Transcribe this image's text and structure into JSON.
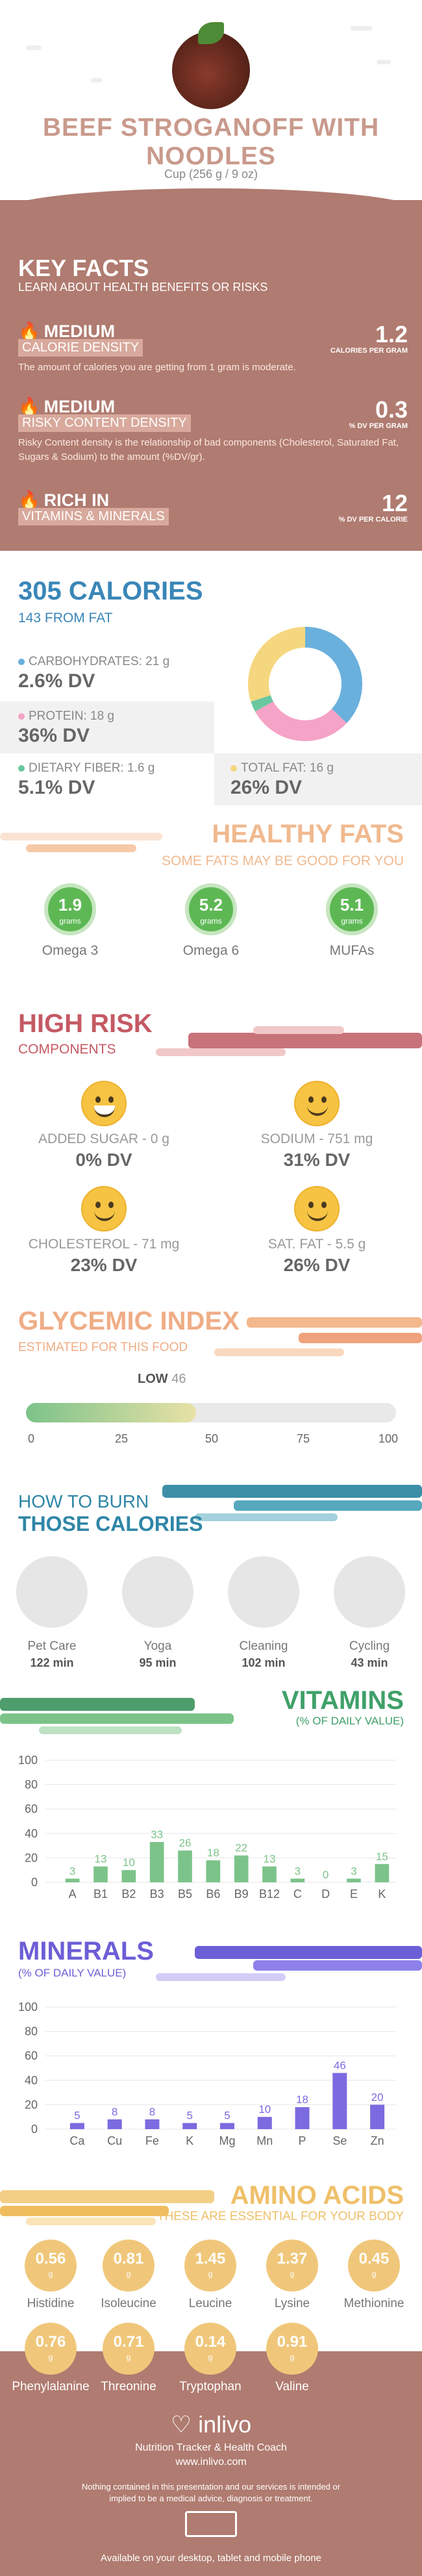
{
  "header": {
    "title": "BEEF STROGANOFF WITH NOODLES",
    "serving": "Cup (256 g / 9 oz)"
  },
  "key_facts": {
    "title": "KEY FACTS",
    "subtitle": "LEARN ABOUT HEALTH BENEFITS OR RISKS",
    "items": [
      {
        "level": "MEDIUM",
        "label": "CALORIE DENSITY",
        "value": "1.2",
        "unit": "CALORIES PER GRAM",
        "desc": "The amount of calories you are getting from 1 gram is moderate."
      },
      {
        "level": "MEDIUM",
        "label": "RISKY CONTENT DENSITY",
        "value": "0.3",
        "unit": "% DV PER GRAM",
        "desc": "Risky Content density is the relationship of bad components (Cholesterol, Saturated Fat, Sugars & Sodium) to the amount (%DV/gr)."
      },
      {
        "level": "RICH  IN",
        "label": "VITAMINS & MINERALS",
        "value": "12",
        "unit": "% DV PER CALORIE",
        "desc": ""
      }
    ]
  },
  "calories": {
    "title": "305 CALORIES",
    "fat": "143 FROM FAT",
    "nutrients": [
      {
        "label": "CARBOHYDRATES: 21 g",
        "dv": "2.6% DV",
        "color": "#6ab0dd"
      },
      {
        "label": "PROTEIN: 18 g",
        "dv": "36% DV",
        "color": "#f5a3c7"
      },
      {
        "label": "DIETARY FIBER: 1.6 g",
        "dv": "5.1% DV",
        "color": "#6bc7a0"
      },
      {
        "label": "TOTAL FAT: 16 g",
        "dv": "26% DV",
        "color": "#f5d77f"
      }
    ],
    "donut": [
      {
        "name": "carbs",
        "value": 37,
        "color": "#6ab0dd"
      },
      {
        "name": "protein",
        "value": 30,
        "color": "#f5a3c7"
      },
      {
        "name": "fiber",
        "value": 3,
        "color": "#6bc7a0"
      },
      {
        "name": "fat",
        "value": 30,
        "color": "#f5d77f"
      }
    ]
  },
  "healthy_fats": {
    "title": "HEALTHY FATS",
    "subtitle": "SOME FATS MAY BE GOOD FOR YOU",
    "items": [
      {
        "value": "1.9",
        "unit": "grams",
        "label": "Omega 3"
      },
      {
        "value": "5.2",
        "unit": "grams",
        "label": "Omega 6"
      },
      {
        "value": "5.1",
        "unit": "grams",
        "label": "MUFAs"
      }
    ]
  },
  "high_risk": {
    "title": "HIGH RISK",
    "subtitle": "COMPONENTS",
    "items": [
      {
        "label": "ADDED SUGAR - 0 g",
        "dv": "0% DV",
        "icon": "grin-icon"
      },
      {
        "label": "SODIUM - 751 mg",
        "dv": "31% DV",
        "icon": "smile-icon"
      },
      {
        "label": "CHOLESTEROL - 71 mg",
        "dv": "23% DV",
        "icon": "smile-icon"
      },
      {
        "label": "SAT. FAT - 5.5 g",
        "dv": "26% DV",
        "icon": "smile-icon"
      }
    ]
  },
  "glycemic": {
    "title": "GLYCEMIC INDEX",
    "subtitle": "ESTIMATED FOR THIS FOOD",
    "level": "LOW",
    "value": "46",
    "fraction": 0.46,
    "ticks": [
      "0",
      "25",
      "50",
      "75",
      "100"
    ]
  },
  "burn": {
    "title1": "HOW TO BURN",
    "title2": "THOSE CALORIES",
    "items": [
      {
        "label": "Pet Care",
        "minutes": "122 min",
        "icon": "dog-walking-icon"
      },
      {
        "label": "Yoga",
        "minutes": "95 min",
        "icon": "yoga-icon"
      },
      {
        "label": "Cleaning",
        "minutes": "102 min",
        "icon": "vacuum-icon"
      },
      {
        "label": "Cycling",
        "minutes": "43 min",
        "icon": "bicycle-icon"
      }
    ]
  },
  "vitamins": {
    "title": "VITAMINS",
    "subtitle": "(% OF DAILY VALUE)",
    "yticks": [
      "100",
      "80",
      "60",
      "40",
      "20",
      "0"
    ],
    "color": "#7cc38a"
  },
  "minerals": {
    "title": "MINERALS",
    "subtitle": "(% OF DAILY VALUE)",
    "yticks": [
      "100",
      "80",
      "60",
      "40",
      "20",
      "0"
    ],
    "color": "#7b6be0"
  },
  "chart_data": [
    {
      "type": "bar",
      "categories": [
        "A",
        "B1",
        "B2",
        "B3",
        "B5",
        "B6",
        "B9",
        "B12",
        "C",
        "D",
        "E",
        "K"
      ],
      "values": [
        3,
        13,
        10,
        33,
        26,
        18,
        22,
        13,
        3,
        0,
        3,
        15
      ],
      "title": "VITAMINS",
      "ylabel": "(% OF DAILY VALUE)",
      "ylim": [
        0,
        100
      ]
    },
    {
      "type": "bar",
      "categories": [
        "Ca",
        "Cu",
        "Fe",
        "K",
        "Mg",
        "Mn",
        "P",
        "Se",
        "Zn"
      ],
      "values": [
        5,
        8,
        8,
        5,
        5,
        10,
        18,
        46,
        20
      ],
      "title": "MINERALS",
      "ylabel": "(% OF DAILY VALUE)",
      "ylim": [
        0,
        100
      ]
    }
  ],
  "amino": {
    "title": "AMINO ACIDS",
    "subtitle": "THESE ARE ESSENTIAL FOR YOUR BODY",
    "unit": "g",
    "items": [
      {
        "value": "0.56",
        "label": "Histidine"
      },
      {
        "value": "0.81",
        "label": "Isoleucine"
      },
      {
        "value": "1.45",
        "label": "Leucine"
      },
      {
        "value": "1.37",
        "label": "Lysine"
      },
      {
        "value": "0.45",
        "label": "Methionine"
      },
      {
        "value": "0.76",
        "label": "Phenylalanine"
      },
      {
        "value": "0.71",
        "label": "Threonine"
      },
      {
        "value": "0.14",
        "label": "Tryptophan"
      },
      {
        "value": "0.91",
        "label": "Valine"
      }
    ]
  },
  "footer": {
    "brand": "inlivo",
    "tagline": "Nutrition Tracker & Health Coach",
    "url": "www.inlivo.com",
    "disclaimer": "Nothing contained in this presentation and our services is intended or implied to be a medical advice, diagnosis or treatment.",
    "available": "Available on your desktop, tablet and mobile phone"
  }
}
